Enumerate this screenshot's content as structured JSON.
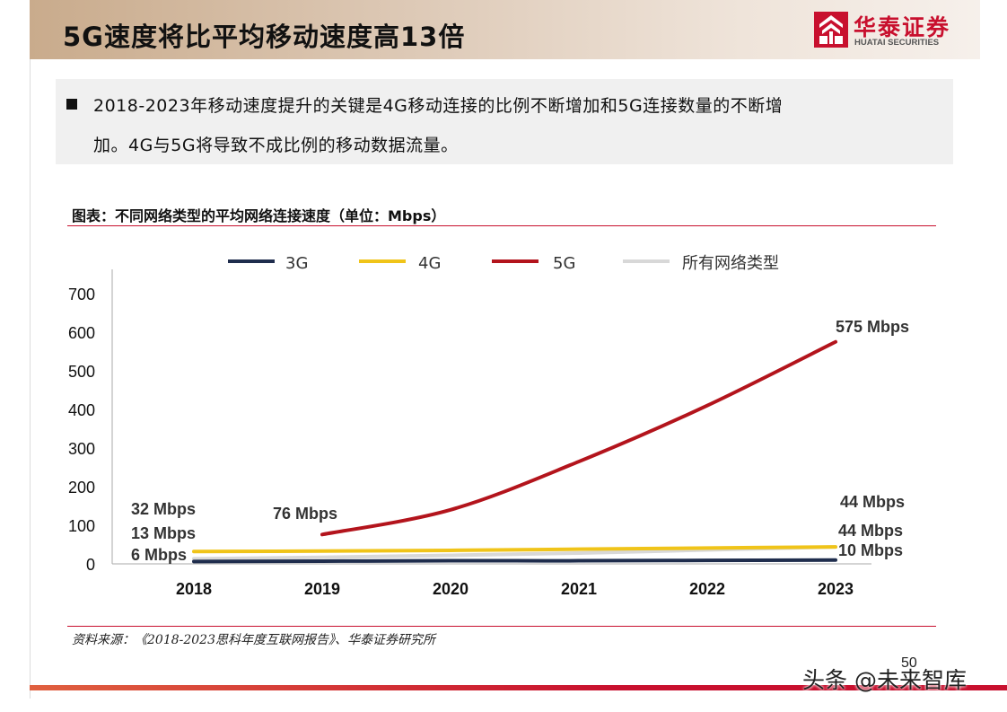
{
  "header": {
    "title": "5G速度将比平均移动速度高13倍",
    "logo_cn": "华泰证券",
    "logo_en": "HUATAI SECURITIES"
  },
  "summary": {
    "line1": "2018-2023年移动速度提升的关键是4G移动连接的比例不断增加和5G连接数量的不断增",
    "line2": "加。4G与5G将导致不成比例的移动数据流量。"
  },
  "figure": {
    "title": "图表：不同网络类型的平均网络连接速度（单位：Mbps）",
    "source": "资料来源：《2018-2023思科年度互联网报告》、华泰证券研究所"
  },
  "chart_data": {
    "type": "line",
    "x": [
      "2018",
      "2019",
      "2020",
      "2021",
      "2022",
      "2023"
    ],
    "ylim": [
      0,
      700
    ],
    "yticks": [
      "0",
      "100",
      "200",
      "300",
      "400",
      "500",
      "600",
      "700"
    ],
    "grid": false,
    "legend_position": "top",
    "series": [
      {
        "name": "3G",
        "color": "#1f2d4d",
        "values": [
          6,
          7,
          8,
          8,
          9,
          10
        ]
      },
      {
        "name": "4G",
        "color": "#f0c419",
        "values": [
          32,
          33,
          35,
          38,
          41,
          44
        ]
      },
      {
        "name": "5G",
        "color": "#b3141c",
        "values": [
          null,
          76,
          140,
          265,
          410,
          575
        ]
      },
      {
        "name": "所有网络类型",
        "color": "#d8d8d8",
        "values": [
          13,
          17,
          22,
          28,
          36,
          44
        ]
      }
    ],
    "data_labels": [
      {
        "text": "32 Mbps",
        "series": "4G",
        "x": "2018"
      },
      {
        "text": "13 Mbps",
        "series": "所有网络类型",
        "x": "2018"
      },
      {
        "text": "6 Mbps",
        "series": "3G",
        "x": "2018"
      },
      {
        "text": "76 Mbps",
        "series": "5G",
        "x": "2019"
      },
      {
        "text": "575 Mbps",
        "series": "5G",
        "x": "2023"
      },
      {
        "text": "44 Mbps",
        "series": "4G",
        "x": "2023"
      },
      {
        "text": "44 Mbps",
        "series": "所有网络类型",
        "x": "2023"
      },
      {
        "text": "10 Mbps",
        "series": "3G",
        "x": "2023"
      }
    ]
  },
  "footer": {
    "page_number": "50",
    "watermark": "头条 @未来智库"
  }
}
